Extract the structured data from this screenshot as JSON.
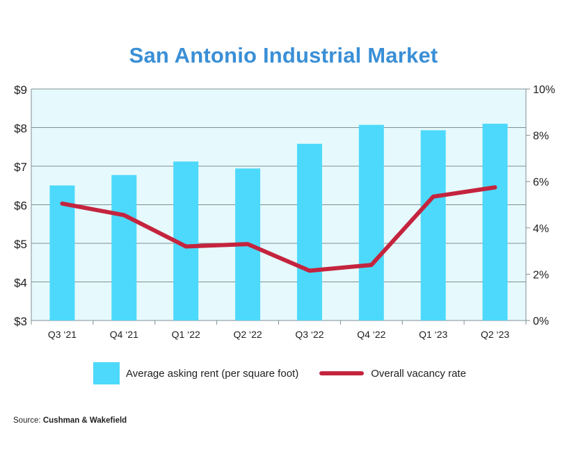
{
  "chart_data": {
    "type": "bar",
    "title": "San Antonio Industrial Market",
    "categories": [
      "Q3 ‘21",
      "Q4 ‘21",
      "Q1 ‘22",
      "Q2 ‘22",
      "Q3 ‘22",
      "Q4 ‘22",
      "Q1 ‘23",
      "Q2 ‘23"
    ],
    "series": [
      {
        "name": "Average asking rent (per square foot)",
        "type": "bar",
        "axis": "left",
        "values": [
          6.5,
          6.77,
          7.12,
          6.94,
          7.58,
          8.07,
          7.93,
          8.1
        ]
      },
      {
        "name": "Overall vacancy rate",
        "type": "line",
        "axis": "right",
        "values": [
          5.05,
          4.55,
          3.2,
          3.3,
          2.15,
          2.4,
          5.35,
          5.75
        ]
      }
    ],
    "y_left": {
      "ylim": [
        3,
        9
      ],
      "ticks": [
        3,
        4,
        5,
        6,
        7,
        8,
        9
      ],
      "tick_labels": [
        "$3",
        "$4",
        "$5",
        "$6",
        "$7",
        "$8",
        "$9"
      ]
    },
    "y_right": {
      "ylim": [
        0,
        10
      ],
      "ticks": [
        0,
        2,
        4,
        6,
        8,
        10
      ],
      "tick_labels": [
        "0%",
        "2%",
        "4%",
        "6%",
        "8%",
        "10%"
      ]
    },
    "grid": true,
    "legend_position": "bottom"
  },
  "colors": {
    "title": "#3a8fd6",
    "bar": "#4dd9fb",
    "line": "#c4243e",
    "plot_background": "#e6fafd",
    "grid": "#7d8f94"
  },
  "source": {
    "label": "Source:",
    "name": "Cushman & Wakefield"
  }
}
